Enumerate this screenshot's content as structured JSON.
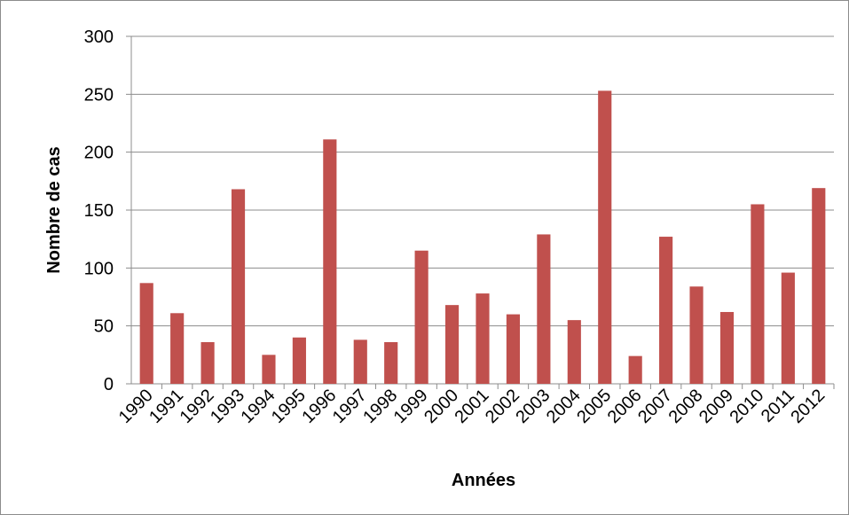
{
  "chart_data": {
    "type": "bar",
    "x_label": "Années",
    "y_label": "Nombre de cas",
    "categories": [
      "1990",
      "1991",
      "1992",
      "1993",
      "1994",
      "1995",
      "1996",
      "1997",
      "1998",
      "1999",
      "2000",
      "2001",
      "2002",
      "2003",
      "2004",
      "2005",
      "2006",
      "2007",
      "2008",
      "2009",
      "2010",
      "2011",
      "2012"
    ],
    "values": [
      87,
      61,
      36,
      168,
      25,
      40,
      211,
      38,
      36,
      115,
      68,
      78,
      60,
      129,
      55,
      253,
      24,
      127,
      84,
      62,
      155,
      96,
      169
    ],
    "color": "#c0504d",
    "ylim": [
      0,
      300
    ],
    "yticks": [
      0,
      50,
      100,
      150,
      200,
      250,
      300
    ],
    "grid": true
  }
}
